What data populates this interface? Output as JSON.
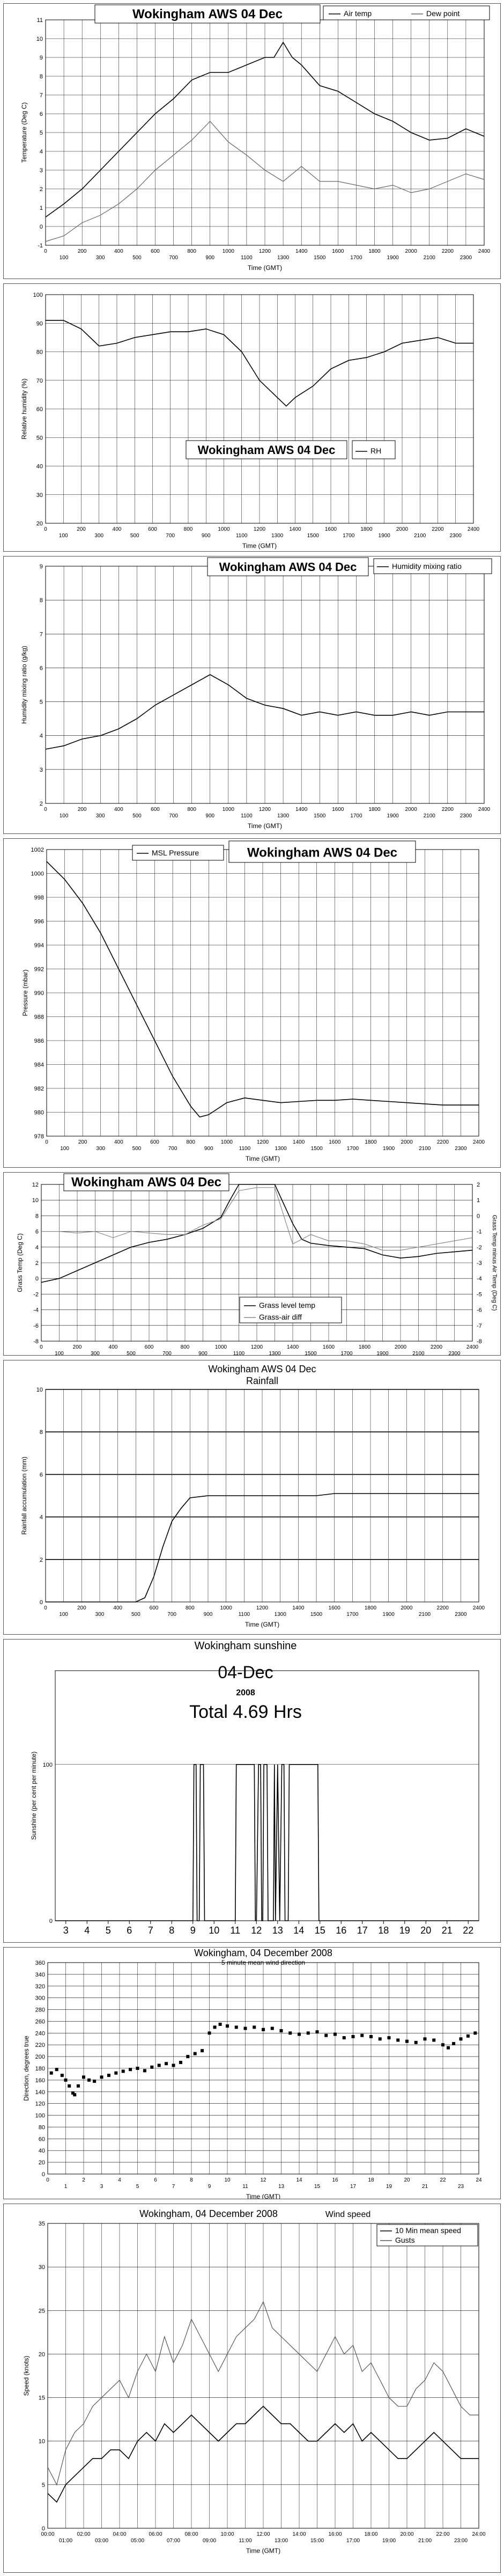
{
  "chart_data": [
    {
      "type": "line",
      "title": "Wokingham AWS 04 Dec",
      "xlabel": "Time (GMT)",
      "ylabel": "Temperature (Deg C)",
      "ylim": [
        -1,
        11
      ],
      "xlim": [
        0,
        2400
      ],
      "legend_placement": "top-right",
      "series": [
        {
          "name": "Air temp",
          "color": "#000000",
          "x": [
            0,
            100,
            200,
            300,
            400,
            500,
            600,
            700,
            800,
            900,
            1000,
            1100,
            1200,
            1250,
            1300,
            1350,
            1400,
            1500,
            1600,
            1700,
            1800,
            1900,
            2000,
            2100,
            2200,
            2300,
            2400
          ],
          "y": [
            0.5,
            1.2,
            2.0,
            3.0,
            4.0,
            5.0,
            6.0,
            6.8,
            7.8,
            8.2,
            8.2,
            8.6,
            9.0,
            9.0,
            9.8,
            9.0,
            8.6,
            7.5,
            7.2,
            6.6,
            6.0,
            5.6,
            5.0,
            4.6,
            4.7,
            5.2,
            4.8
          ]
        },
        {
          "name": "Dew point",
          "color": "#666666",
          "x": [
            0,
            100,
            200,
            300,
            400,
            500,
            600,
            700,
            800,
            900,
            1000,
            1100,
            1200,
            1300,
            1400,
            1500,
            1600,
            1700,
            1800,
            1900,
            2000,
            2100,
            2200,
            2300,
            2400
          ],
          "y": [
            -0.8,
            -0.5,
            0.2,
            0.6,
            1.2,
            2.0,
            3.0,
            3.8,
            4.6,
            5.6,
            4.5,
            3.8,
            3.0,
            2.4,
            3.2,
            2.4,
            2.4,
            2.2,
            2.0,
            2.2,
            1.8,
            2.0,
            2.4,
            2.8,
            2.5
          ]
        }
      ]
    },
    {
      "type": "line",
      "title": "Wokingham AWS 04 Dec",
      "xlabel": "Time (GMT)",
      "ylabel": "Relative humidity (%)",
      "ylim": [
        20,
        100
      ],
      "xlim": [
        0,
        2400
      ],
      "legend_placement": "bottom-center",
      "series": [
        {
          "name": "RH",
          "color": "#000000",
          "x": [
            0,
            100,
            200,
            300,
            400,
            500,
            600,
            700,
            800,
            900,
            1000,
            1100,
            1200,
            1300,
            1350,
            1400,
            1500,
            1600,
            1700,
            1800,
            1900,
            2000,
            2100,
            2200,
            2300,
            2400
          ],
          "y": [
            91,
            91,
            88,
            82,
            83,
            85,
            86,
            87,
            87,
            88,
            86,
            80,
            70,
            64,
            61,
            64,
            68,
            74,
            77,
            78,
            80,
            83,
            84,
            85,
            83,
            83
          ]
        }
      ]
    },
    {
      "type": "line",
      "title": "Wokingham AWS 04 Dec",
      "xlabel": "Time (GMT)",
      "ylabel": "Humidity mixing ratio (g/kg)",
      "ylim": [
        2,
        9
      ],
      "xlim": [
        0,
        2400
      ],
      "legend_placement": "top-right",
      "series": [
        {
          "name": "Humidity mixing ratio",
          "color": "#000000",
          "x": [
            0,
            100,
            200,
            300,
            400,
            500,
            600,
            700,
            800,
            900,
            1000,
            1100,
            1200,
            1300,
            1400,
            1500,
            1600,
            1700,
            1800,
            1900,
            2000,
            2100,
            2200,
            2300,
            2400
          ],
          "y": [
            3.6,
            3.7,
            3.9,
            4.0,
            4.2,
            4.5,
            4.9,
            5.2,
            5.5,
            5.8,
            5.5,
            5.1,
            4.9,
            4.8,
            4.6,
            4.7,
            4.6,
            4.7,
            4.6,
            4.6,
            4.7,
            4.6,
            4.7,
            4.7,
            4.7
          ]
        }
      ]
    },
    {
      "type": "line",
      "title": "Wokingham AWS 04 Dec",
      "xlabel": "Time (GMT)",
      "ylabel": "Pressure (mbar)",
      "ylim": [
        978,
        1002
      ],
      "xlim": [
        0,
        2400
      ],
      "legend_placement": "top-left",
      "series": [
        {
          "name": "MSL Pressure",
          "color": "#000000",
          "x": [
            0,
            100,
            200,
            300,
            400,
            500,
            600,
            700,
            800,
            850,
            900,
            1000,
            1100,
            1200,
            1300,
            1400,
            1500,
            1600,
            1700,
            1800,
            1900,
            2000,
            2100,
            2200,
            2300,
            2400
          ],
          "y": [
            1001,
            999.5,
            997.5,
            995,
            992,
            989,
            986,
            983,
            980.5,
            979.6,
            979.8,
            980.8,
            981.2,
            981.0,
            980.8,
            980.9,
            981.0,
            981.0,
            981.1,
            981.0,
            980.9,
            980.8,
            980.7,
            980.6,
            980.6,
            980.6
          ]
        }
      ]
    },
    {
      "type": "line",
      "title": "Wokingham AWS 04 Dec",
      "xlabel": "Time (GMT)",
      "ylabel": "Grass Temp (Deg C)",
      "ylabel_right": "Grass Temp minus Air Temp (Deg C)",
      "ylim": [
        -8,
        12
      ],
      "ylim_right": [
        -8,
        2
      ],
      "xlim": [
        0,
        2400
      ],
      "legend_placement": "bottom-center",
      "series": [
        {
          "name": "Grass level temp",
          "color": "#000000",
          "x": [
            0,
            100,
            200,
            300,
            400,
            500,
            600,
            700,
            800,
            900,
            1000,
            1050,
            1100,
            1200,
            1300,
            1400,
            1450,
            1500,
            1600,
            1700,
            1800,
            1900,
            2000,
            2100,
            2200,
            2300,
            2400
          ],
          "y": [
            -0.5,
            0.0,
            1.0,
            2.0,
            3.0,
            4.0,
            4.6,
            5.0,
            5.6,
            6.4,
            7.8,
            10.0,
            12.0,
            12.0,
            12.0,
            7.0,
            5.0,
            4.5,
            4.2,
            4.0,
            3.8,
            3.0,
            2.6,
            2.8,
            3.2,
            3.4,
            3.6
          ]
        },
        {
          "name": "Grass-air diff",
          "color": "#888888",
          "x": [
            0,
            100,
            200,
            300,
            400,
            500,
            600,
            700,
            800,
            900,
            1000,
            1100,
            1200,
            1300,
            1400,
            1500,
            1600,
            1700,
            1800,
            1900,
            2000,
            2100,
            2200,
            2300,
            2400
          ],
          "y": [
            -1.0,
            -1.0,
            -1.1,
            -1.0,
            -1.4,
            -1.0,
            -1.1,
            -1.2,
            -1.2,
            -0.6,
            -0.2,
            1.6,
            1.8,
            1.8,
            -1.8,
            -1.2,
            -1.6,
            -1.6,
            -1.8,
            -2.2,
            -2.2,
            -2.0,
            -1.8,
            -1.6,
            -1.4
          ]
        }
      ]
    },
    {
      "type": "line",
      "title": "Wokingham AWS 04 Dec",
      "subtitle": "Rainfall",
      "xlabel": "Time (GMT)",
      "ylabel": "Rainfall accumulation (mm)",
      "ylim": [
        0,
        10
      ],
      "xlim": [
        0,
        2400
      ],
      "series": [
        {
          "name": "",
          "color": "#000000",
          "x": [
            0,
            500,
            550,
            600,
            650,
            700,
            750,
            800,
            900,
            1000,
            1500,
            1600,
            1700,
            2400
          ],
          "y": [
            0,
            0,
            0.2,
            1.2,
            2.6,
            3.8,
            4.4,
            4.9,
            5.0,
            5.0,
            5.0,
            5.1,
            5.1,
            5.1
          ]
        }
      ]
    },
    {
      "type": "line",
      "title": "Wokingham sunshine",
      "subtitle": "04-Dec",
      "subtitle2": "2008",
      "annotation": "Total 4.69 Hrs",
      "xlabel": "",
      "ylabel": "Sunshine (per cent per minute)",
      "ylim": [
        0,
        160
      ],
      "xlim": [
        2.5,
        22.5
      ],
      "categories": [
        "3",
        "4",
        "5",
        "6",
        "7",
        "8",
        "9",
        "10",
        "11",
        "12",
        "13",
        "14",
        "15",
        "16",
        "17",
        "18",
        "19",
        "20",
        "21",
        "22"
      ],
      "series": [
        {
          "name": "",
          "color": "#000000",
          "x": [
            2.5,
            9.0,
            9.05,
            9.15,
            9.2,
            9.3,
            9.35,
            9.5,
            9.55,
            9.7,
            9.75,
            11.0,
            11.05,
            11.1,
            11.2,
            11.9,
            11.95,
            12.0,
            12.1,
            12.2,
            12.25,
            12.3,
            12.35,
            12.5,
            12.55,
            12.8,
            12.85,
            12.9,
            13.0,
            13.1,
            13.2,
            13.3,
            13.35,
            13.5,
            13.55,
            14.9,
            14.95,
            22.5
          ],
          "y": [
            0,
            0,
            100,
            100,
            0,
            0,
            100,
            100,
            0,
            0,
            0,
            0,
            100,
            100,
            100,
            100,
            0,
            0,
            100,
            100,
            0,
            0,
            100,
            100,
            0,
            0,
            100,
            0,
            100,
            0,
            100,
            100,
            0,
            0,
            100,
            100,
            0,
            0
          ]
        }
      ]
    },
    {
      "type": "scatter",
      "title": "Wokingham,  04 December 2008",
      "subtitle": "5 minute mean wind direction",
      "xlabel": "Time (GMT)",
      "ylabel": "Direction, degrees true",
      "ylim": [
        0,
        360
      ],
      "xlim": [
        0,
        24
      ],
      "series": [
        {
          "name": "",
          "color": "#000000",
          "x": [
            0.2,
            0.5,
            0.8,
            1.0,
            1.2,
            1.4,
            1.5,
            1.7,
            2.0,
            2.3,
            2.6,
            3.0,
            3.4,
            3.8,
            4.2,
            4.6,
            5.0,
            5.4,
            5.8,
            6.2,
            6.6,
            7.0,
            7.4,
            7.8,
            8.2,
            8.6,
            9.0,
            9.3,
            9.6,
            10.0,
            10.5,
            11.0,
            11.5,
            12.0,
            12.5,
            13.0,
            13.5,
            14.0,
            14.5,
            15.0,
            15.5,
            16.0,
            16.5,
            17.0,
            17.5,
            18.0,
            18.5,
            19.0,
            19.5,
            20.0,
            20.5,
            21.0,
            21.5,
            22.0,
            22.3,
            22.6,
            23.0,
            23.4,
            23.8
          ],
          "y": [
            172,
            178,
            168,
            160,
            150,
            138,
            135,
            150,
            165,
            160,
            158,
            165,
            168,
            172,
            175,
            178,
            180,
            176,
            182,
            185,
            188,
            185,
            190,
            200,
            205,
            210,
            240,
            250,
            255,
            252,
            250,
            248,
            250,
            246,
            248,
            244,
            240,
            238,
            240,
            242,
            236,
            238,
            232,
            234,
            236,
            234,
            230,
            232,
            228,
            226,
            224,
            230,
            228,
            220,
            215,
            222,
            230,
            235,
            240
          ]
        }
      ]
    },
    {
      "type": "line",
      "title": "Wokingham,  04 December 2008",
      "subtitle": "Wind speed",
      "xlabel": "Time (GMT)",
      "ylabel": "Speed (knots)",
      "ylim": [
        0,
        35
      ],
      "xlim": [
        0,
        24
      ],
      "legend_placement": "top-right",
      "series": [
        {
          "name": "10 Min mean speed",
          "color": "#000000",
          "x": [
            0,
            0.5,
            1,
            1.5,
            2,
            2.5,
            3,
            3.5,
            4,
            4.5,
            5,
            5.5,
            6,
            6.5,
            7,
            7.5,
            8,
            8.5,
            9,
            9.5,
            10,
            10.5,
            11,
            11.5,
            12,
            12.5,
            13,
            13.5,
            14,
            14.5,
            15,
            15.5,
            16,
            16.5,
            17,
            17.5,
            18,
            18.5,
            19,
            19.5,
            20,
            20.5,
            21,
            21.5,
            22,
            22.5,
            23,
            23.5,
            24
          ],
          "y": [
            4,
            3,
            5,
            6,
            7,
            8,
            8,
            9,
            9,
            8,
            10,
            11,
            10,
            12,
            11,
            12,
            13,
            12,
            11,
            10,
            11,
            12,
            12,
            13,
            14,
            13,
            12,
            12,
            11,
            10,
            10,
            11,
            12,
            11,
            12,
            10,
            11,
            10,
            9,
            8,
            8,
            9,
            10,
            11,
            10,
            9,
            8,
            8,
            8
          ]
        },
        {
          "name": "Gusts",
          "color": "#555555",
          "x": [
            0,
            0.5,
            1,
            1.5,
            2,
            2.5,
            3,
            3.5,
            4,
            4.5,
            5,
            5.5,
            6,
            6.5,
            7,
            7.5,
            8,
            8.5,
            9,
            9.5,
            10,
            10.5,
            11,
            11.5,
            12,
            12.5,
            13,
            13.5,
            14,
            14.5,
            15,
            15.5,
            16,
            16.5,
            17,
            17.5,
            18,
            18.5,
            19,
            19.5,
            20,
            20.5,
            21,
            21.5,
            22,
            22.5,
            23,
            23.5,
            24
          ],
          "y": [
            7,
            5,
            9,
            11,
            12,
            14,
            15,
            16,
            17,
            15,
            18,
            20,
            18,
            22,
            19,
            21,
            24,
            22,
            20,
            18,
            20,
            22,
            23,
            24,
            26,
            23,
            22,
            21,
            20,
            19,
            18,
            20,
            22,
            20,
            21,
            18,
            19,
            17,
            15,
            14,
            14,
            16,
            17,
            19,
            18,
            16,
            14,
            13,
            13
          ]
        }
      ]
    }
  ]
}
